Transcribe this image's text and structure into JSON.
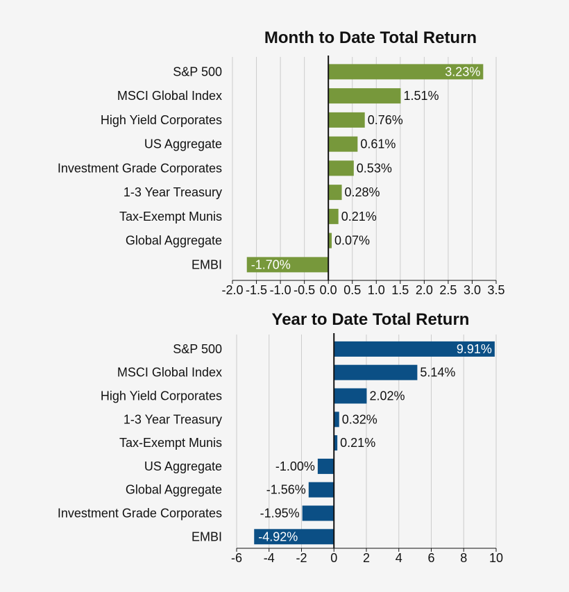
{
  "colors": {
    "background": "#f5f5f5",
    "month_bar": "#77983b",
    "year_bar": "#0b4f85",
    "grid": "#cccccc",
    "axis": "#111111",
    "inside_label": "#ffffff",
    "outside_label": "#111111"
  },
  "chart_data": [
    {
      "type": "bar",
      "orientation": "horizontal",
      "title": "Month to Date Total Return",
      "categories": [
        "S&P 500",
        "MSCI Global Index",
        "High Yield Corporates",
        "US Aggregate",
        "Investment Grade Corporates",
        "1-3 Year Treasury",
        "Tax-Exempt Munis",
        "Global Aggregate",
        "EMBI"
      ],
      "values": [
        3.23,
        1.51,
        0.76,
        0.61,
        0.53,
        0.28,
        0.21,
        0.07,
        -1.7
      ],
      "value_labels": [
        "3.23%",
        "1.51%",
        "0.76%",
        "0.61%",
        "0.53%",
        "0.28%",
        "0.21%",
        "0.07%",
        "-1.70%"
      ],
      "label_inside": [
        true,
        false,
        false,
        false,
        false,
        false,
        false,
        false,
        true
      ],
      "xlim": [
        -2.0,
        3.5
      ],
      "xticks": [
        -2.0,
        -1.5,
        -1.0,
        -0.5,
        0.0,
        0.5,
        1.0,
        1.5,
        2.0,
        2.5,
        3.0,
        3.5
      ],
      "xtick_labels": [
        "-2.0",
        "-1.5",
        "-1.0",
        "-0.5",
        "0.0",
        "0.5",
        "1.0",
        "1.5",
        "2.0",
        "2.5",
        "3.0",
        "3.5"
      ],
      "grid": true,
      "color": "#77983b"
    },
    {
      "type": "bar",
      "orientation": "horizontal",
      "title": "Year to Date Total Return",
      "categories": [
        "S&P 500",
        "MSCI Global Index",
        "High Yield Corporates",
        "1-3 Year Treasury",
        "Tax-Exempt Munis",
        "US Aggregate",
        "Global Aggregate",
        "Investment Grade Corporates",
        "EMBI"
      ],
      "values": [
        9.91,
        5.14,
        2.02,
        0.32,
        0.21,
        -1.0,
        -1.56,
        -1.95,
        -4.92
      ],
      "value_labels": [
        "9.91%",
        "5.14%",
        "2.02%",
        "0.32%",
        "0.21%",
        "-1.00%",
        "-1.56%",
        "-1.95%",
        "-4.92%"
      ],
      "label_inside": [
        true,
        false,
        false,
        false,
        false,
        false,
        false,
        false,
        true
      ],
      "xlim": [
        -6,
        10
      ],
      "xticks": [
        -6,
        -4,
        -2,
        0,
        2,
        4,
        6,
        8,
        10
      ],
      "xtick_labels": [
        "-6",
        "-4",
        "-2",
        "0",
        "2",
        "4",
        "6",
        "8",
        "10"
      ],
      "grid": true,
      "color": "#0b4f85"
    }
  ]
}
